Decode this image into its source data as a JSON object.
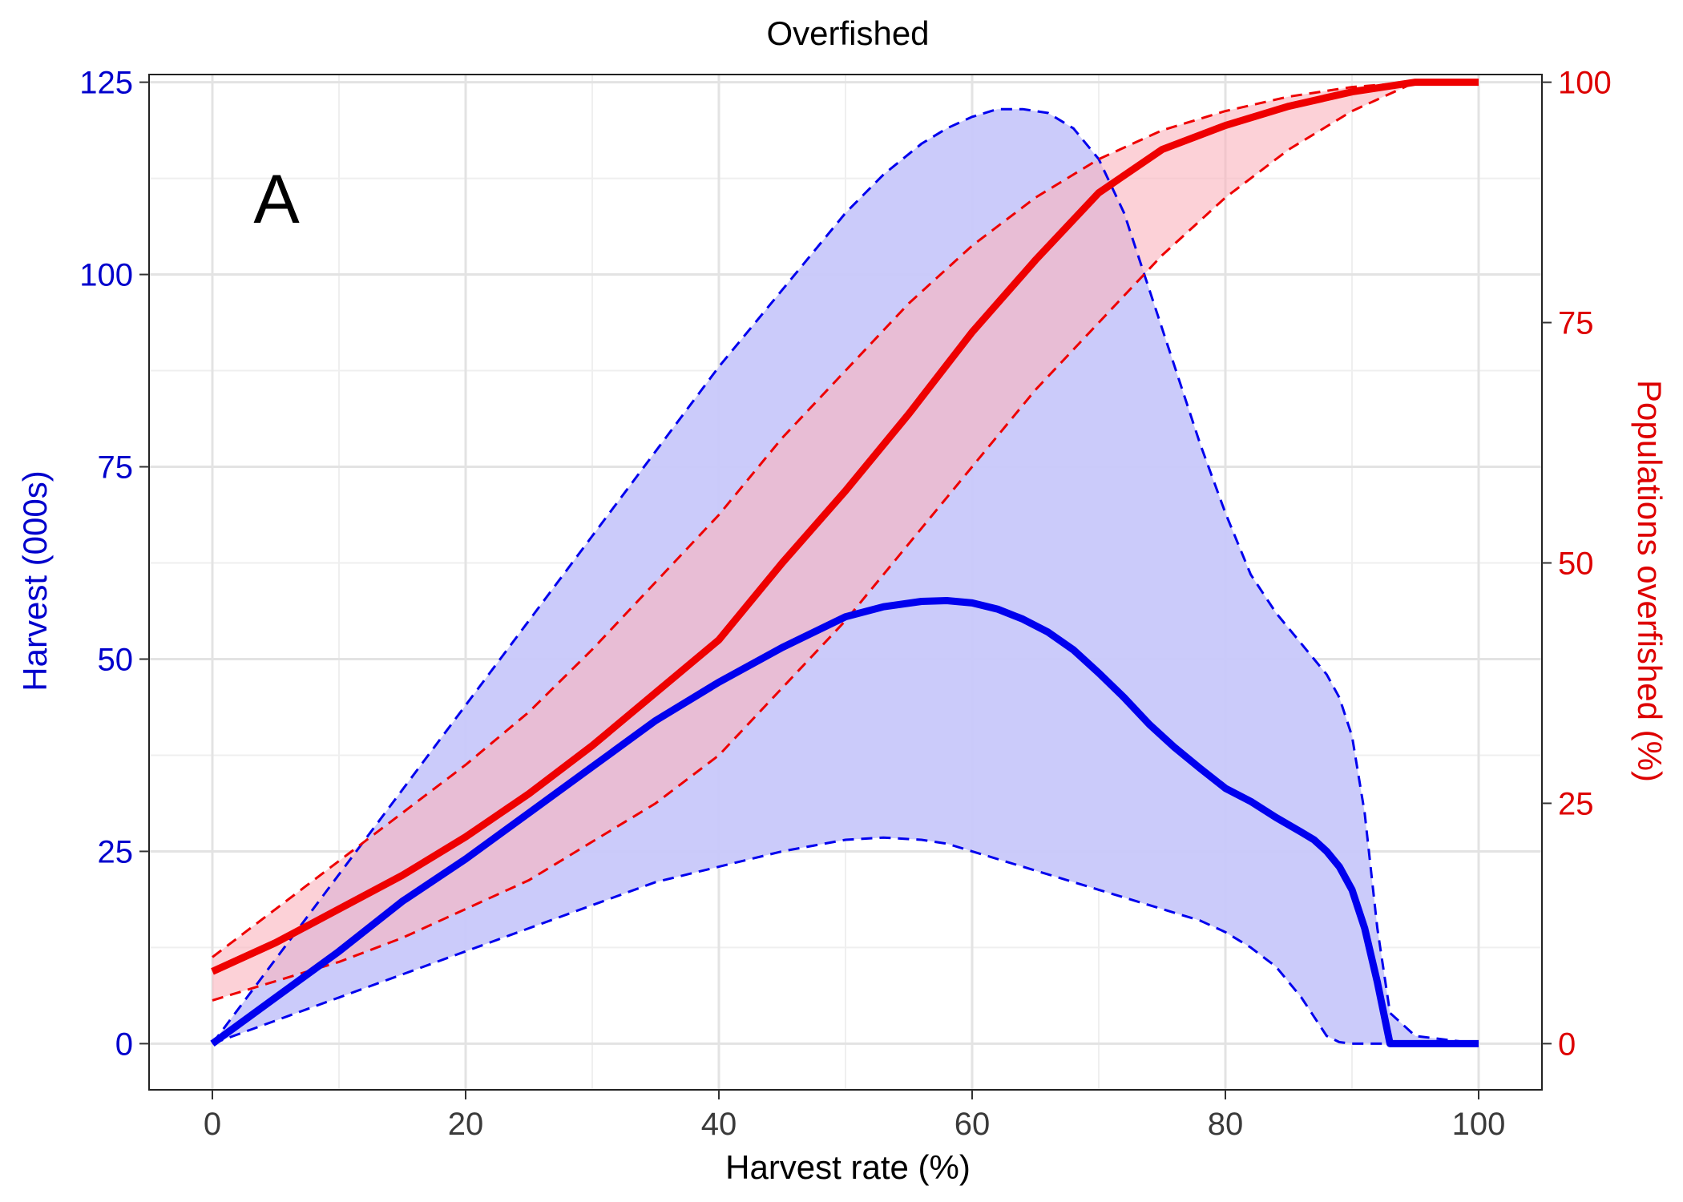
{
  "chart_data": {
    "type": "line",
    "title": "Overfished",
    "panel_label": "A",
    "xlabel": "Harvest rate (%)",
    "ylabel_left": "Harvest (000s)",
    "ylabel_right": "Populations overfished (%)",
    "xlim": [
      -5,
      105
    ],
    "ylim_left": [
      -6,
      126
    ],
    "ylim_right": [
      -4.8,
      100.8
    ],
    "x_ticks": [
      0,
      20,
      40,
      60,
      80,
      100
    ],
    "y_left_ticks": [
      0,
      25,
      50,
      75,
      100,
      125
    ],
    "y_right_ticks": [
      0,
      25,
      50,
      75,
      100
    ],
    "grid": true,
    "colors": {
      "harvest": "#0000EE",
      "overfished": "#EE0000",
      "harvest_band": "#C8C8FA",
      "overfished_band": "#FAB4BE",
      "axis_left": "#0000CC",
      "axis_right": "#DD0000",
      "axis_x": "#3A3A3A",
      "grid_major": "#E3E3E3",
      "grid_minor": "#EFEFEF"
    },
    "series": [
      {
        "key": "harvest",
        "axis": "left",
        "x": [
          0,
          5,
          10,
          15,
          20,
          25,
          30,
          35,
          40,
          45,
          50,
          53,
          56,
          58,
          60,
          62,
          64,
          66,
          68,
          70,
          72,
          74,
          76,
          78,
          80,
          82,
          84,
          86,
          87,
          88,
          89,
          90,
          91,
          92,
          93,
          95,
          100
        ],
        "y": [
          0,
          6,
          12,
          18.5,
          24,
          30,
          36,
          42,
          47,
          51.5,
          55.5,
          56.8,
          57.5,
          57.6,
          57.3,
          56.5,
          55.2,
          53.5,
          51.2,
          48.2,
          45,
          41.5,
          38.5,
          35.8,
          33.2,
          31.5,
          29.4,
          27.5,
          26.5,
          25,
          23,
          20,
          15,
          8,
          0,
          0,
          0
        ],
        "lower": [
          0,
          3,
          6,
          9,
          12,
          15,
          18,
          21,
          23,
          25,
          26.5,
          26.8,
          26.5,
          26,
          25,
          24,
          23,
          22,
          21,
          20,
          19,
          18,
          17,
          16,
          14.5,
          12.5,
          10,
          6,
          3.5,
          1,
          0.2,
          0,
          0,
          0,
          0,
          0,
          0
        ],
        "upper": [
          0,
          11,
          22,
          33,
          44,
          55,
          66,
          77,
          88,
          98,
          108,
          113,
          117,
          119,
          120.5,
          121.5,
          121.5,
          121,
          119,
          115,
          108,
          98,
          88,
          78,
          69,
          61,
          56,
          52,
          50,
          48,
          45,
          40,
          30,
          15,
          4,
          1,
          0
        ]
      },
      {
        "key": "overfished",
        "axis": "right",
        "x": [
          0,
          5,
          10,
          15,
          20,
          25,
          30,
          35,
          40,
          45,
          50,
          55,
          60,
          65,
          70,
          75,
          80,
          85,
          90,
          95,
          100
        ],
        "y": [
          7.5,
          10.5,
          14,
          17.5,
          21.5,
          26,
          31,
          36.5,
          42,
          50,
          57.5,
          65.5,
          74,
          81.5,
          88.5,
          93,
          95.5,
          97.5,
          99,
          100,
          100
        ],
        "lower": [
          4.5,
          6.5,
          8.5,
          11,
          14,
          17,
          21,
          25,
          30,
          37,
          44,
          52,
          60,
          68,
          75,
          82,
          88,
          93,
          97,
          100,
          100
        ],
        "upper": [
          9,
          14,
          19,
          24,
          29,
          34.5,
          41,
          48,
          55,
          63,
          70,
          77,
          83,
          88,
          92,
          95,
          97,
          98.5,
          99.5,
          100,
          100
        ]
      }
    ]
  }
}
